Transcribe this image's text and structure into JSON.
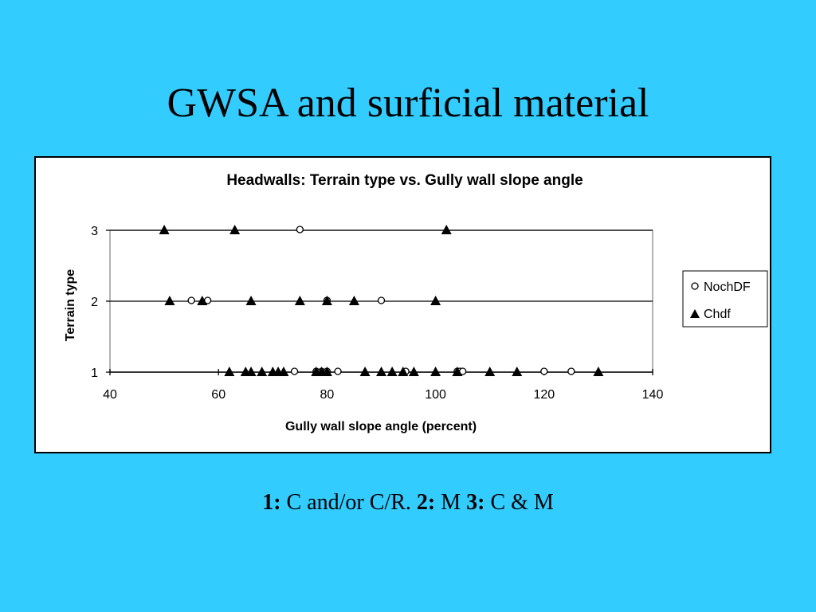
{
  "slide": {
    "title": "GWSA and surficial material",
    "caption": {
      "k1": "1:",
      "v1": " C and/or C/R. ",
      "k2": "2:",
      "v2": " M ",
      "k3": "3:",
      "v3": " C & M"
    }
  },
  "chart_data": {
    "type": "scatter",
    "title": "Headwalls: Terrain type vs. Gully wall slope angle",
    "xlabel": "Gully wall slope angle (percent)",
    "ylabel": "Terrain type",
    "xlim": [
      40,
      140
    ],
    "ylim": [
      1,
      3
    ],
    "xticks": [
      40,
      60,
      80,
      100,
      120,
      140
    ],
    "yticks": [
      1,
      2,
      3
    ],
    "grid": "horizontal",
    "legend": "right",
    "series": [
      {
        "name": "NochDF",
        "marker": "open-circle",
        "points": [
          [
            75,
            3
          ],
          [
            55,
            2
          ],
          [
            58,
            2
          ],
          [
            80,
            2
          ],
          [
            90,
            2
          ],
          [
            74,
            1
          ],
          [
            78,
            1
          ],
          [
            79,
            1
          ],
          [
            80,
            1
          ],
          [
            82,
            1
          ],
          [
            94.5,
            1
          ],
          [
            104,
            1
          ],
          [
            104.5,
            1
          ],
          [
            105,
            1
          ],
          [
            120,
            1
          ],
          [
            125,
            1
          ]
        ]
      },
      {
        "name": "Chdf",
        "marker": "filled-triangle",
        "points": [
          [
            50,
            3
          ],
          [
            63,
            3
          ],
          [
            102,
            3
          ],
          [
            51,
            2
          ],
          [
            57,
            2
          ],
          [
            66,
            2
          ],
          [
            75,
            2
          ],
          [
            80,
            2
          ],
          [
            85,
            2
          ],
          [
            100,
            2
          ],
          [
            62,
            1
          ],
          [
            65,
            1
          ],
          [
            66,
            1
          ],
          [
            68,
            1
          ],
          [
            70,
            1
          ],
          [
            71,
            1
          ],
          [
            72,
            1
          ],
          [
            78,
            1
          ],
          [
            79,
            1
          ],
          [
            80,
            1
          ],
          [
            87,
            1
          ],
          [
            90,
            1
          ],
          [
            92,
            1
          ],
          [
            94,
            1
          ],
          [
            96,
            1
          ],
          [
            100,
            1
          ],
          [
            104,
            1
          ],
          [
            110,
            1
          ],
          [
            115,
            1
          ],
          [
            130,
            1
          ]
        ]
      }
    ]
  }
}
